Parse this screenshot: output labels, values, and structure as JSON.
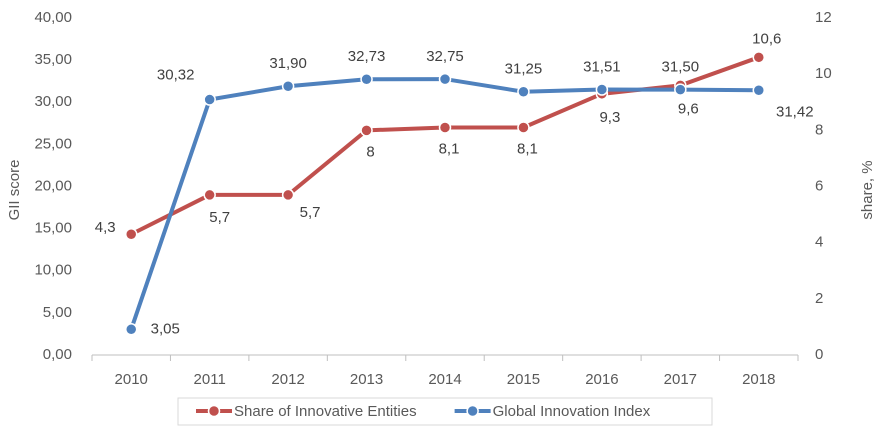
{
  "chart_data": {
    "type": "line",
    "categories": [
      "2010",
      "2011",
      "2012",
      "2013",
      "2014",
      "2015",
      "2016",
      "2017",
      "2018"
    ],
    "ylabel": "GII score",
    "y2label": "share, %",
    "ylim": [
      0,
      40
    ],
    "yticks": [
      {
        "value": 0,
        "label": "0,00"
      },
      {
        "value": 5,
        "label": "5,00"
      },
      {
        "value": 10,
        "label": "10,00"
      },
      {
        "value": 15,
        "label": "15,00"
      },
      {
        "value": 20,
        "label": "20,00"
      },
      {
        "value": 25,
        "label": "25,00"
      },
      {
        "value": 30,
        "label": "30,00"
      },
      {
        "value": 35,
        "label": "35,00"
      },
      {
        "value": 40,
        "label": "40,00"
      }
    ],
    "y2lim": [
      0,
      12
    ],
    "y2ticks": [
      0,
      2,
      4,
      6,
      8,
      10,
      12
    ],
    "series": [
      {
        "name": "Share of Innovative Entities",
        "color": "#c0504d",
        "axis": "y2",
        "values": [
          4.3,
          5.7,
          5.7,
          8,
          8.1,
          8.1,
          9.3,
          9.6,
          10.6
        ],
        "value_labels": [
          "4,3",
          "5,7",
          "5,7",
          "8",
          "8,1",
          "8,1",
          "9,3",
          "9,6",
          "10,6"
        ]
      },
      {
        "name": "Global Innovation Index",
        "color": "#4f81bd",
        "axis": "y",
        "values": [
          3.05,
          30.32,
          31.9,
          32.73,
          32.75,
          31.25,
          31.51,
          31.5,
          31.42
        ],
        "value_labels": [
          "3,05",
          "30,32",
          "31,90",
          "32,73",
          "32,75",
          "31,25",
          "31,51",
          "31,50",
          "31,42"
        ]
      }
    ]
  }
}
